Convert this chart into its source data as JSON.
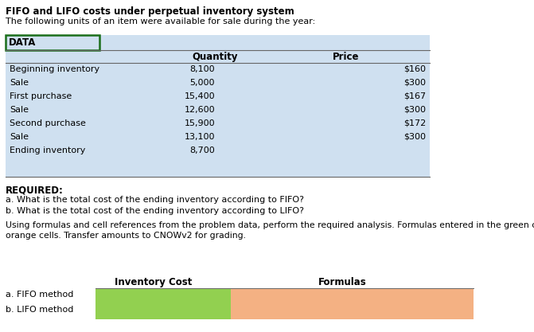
{
  "title": "FIFO and LIFO costs under perpetual inventory system",
  "subtitle": "The following units of an item were available for sale during the year:",
  "table_header_col2": "Quantity",
  "table_header_col3": "Price",
  "table_rows": [
    [
      "Beginning inventory",
      "8,100",
      "$160"
    ],
    [
      "Sale",
      "5,000",
      "$300"
    ],
    [
      "First purchase",
      "15,400",
      "$167"
    ],
    [
      "Sale",
      "12,600",
      "$300"
    ],
    [
      "Second purchase",
      "15,900",
      "$172"
    ],
    [
      "Sale",
      "13,100",
      "$300"
    ],
    [
      "Ending inventory",
      "8,700",
      ""
    ]
  ],
  "data_label": "DATA",
  "required_label": "REQUIRED:",
  "question_a": "a. What is the total cost of the ending inventory according to FIFO?",
  "question_b": "b. What is the total cost of the ending inventory according to LIFO?",
  "instruction_line1": "Using formulas and cell references from the problem data, perform the required analysis. Formulas entered in the green cells",
  "instruction_line2": "orange cells. Transfer amounts to CNOWv2 for grading.",
  "bottom_col1": "Inventory Cost",
  "bottom_col2": "Formulas",
  "bottom_row_a": "a. FIFO method",
  "bottom_row_b": "b. LIFO method",
  "table_bg": "#cfe0f0",
  "data_border_color": "#1a6e1a",
  "green_cell_color": "#92d050",
  "orange_cell_color": "#f4b183",
  "header_line_color": "#666666",
  "white_bg": "#ffffff",
  "fig_w": 6.71,
  "fig_h": 4.17,
  "dpi": 100
}
